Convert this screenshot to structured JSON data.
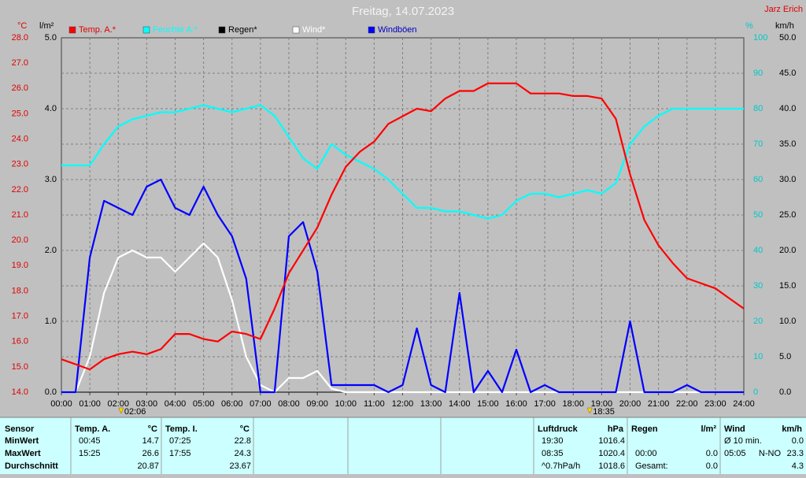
{
  "chart_data": {
    "type": "line",
    "title": "Freitag, 14.07.2023",
    "author": "Jarz Erich",
    "y_unit": "°C",
    "y2_unit": "l/m²",
    "y3_unit": "%",
    "y4_unit": "km/h",
    "grid": true,
    "x": [
      0,
      0.5,
      1,
      1.5,
      2,
      2.5,
      3,
      3.5,
      4,
      4.5,
      5,
      5.5,
      6,
      6.5,
      7,
      7.5,
      8,
      8.5,
      9,
      9.5,
      10,
      10.5,
      11,
      11.5,
      12,
      12.5,
      13,
      13.5,
      14,
      14.5,
      15,
      15.5,
      16,
      16.5,
      17,
      17.5,
      18,
      18.5,
      19,
      19.5,
      20,
      20.5,
      21,
      21.5,
      22,
      22.5,
      23,
      23.5,
      24
    ],
    "xlim": [
      0,
      24
    ],
    "xticks": [
      {
        "value": 0,
        "label": "00:00"
      },
      {
        "value": 1,
        "label": "01:00"
      },
      {
        "value": 2,
        "label": "02:00"
      },
      {
        "value": 3,
        "label": "03:00"
      },
      {
        "value": 4,
        "label": "04:00"
      },
      {
        "value": 5,
        "label": "05:00"
      },
      {
        "value": 6,
        "label": "06:00"
      },
      {
        "value": 7,
        "label": "07:00"
      },
      {
        "value": 8,
        "label": "08:00"
      },
      {
        "value": 9,
        "label": "09:00"
      },
      {
        "value": 10,
        "label": "10:00"
      },
      {
        "value": 11,
        "label": "11:00"
      },
      {
        "value": 12,
        "label": "12:00"
      },
      {
        "value": 13,
        "label": "13:00"
      },
      {
        "value": 14,
        "label": "14:00"
      },
      {
        "value": 15,
        "label": "15:00"
      },
      {
        "value": 16,
        "label": "16:00"
      },
      {
        "value": 17,
        "label": "17:00"
      },
      {
        "value": 18,
        "label": "18:00"
      },
      {
        "value": 19,
        "label": "19:00"
      },
      {
        "value": 20,
        "label": "20:00"
      },
      {
        "value": 21,
        "label": "21:00"
      },
      {
        "value": 22,
        "label": "22:00"
      },
      {
        "value": 23,
        "label": "23:00"
      },
      {
        "value": 24,
        "label": "24:00"
      }
    ],
    "ylim": [
      14,
      28
    ],
    "yticks": [
      {
        "value": 14,
        "label": "14.0"
      },
      {
        "value": 15,
        "label": "15.0"
      },
      {
        "value": 16,
        "label": "16.0"
      },
      {
        "value": 17,
        "label": "17.0"
      },
      {
        "value": 18,
        "label": "18.0"
      },
      {
        "value": 19,
        "label": "19.0"
      },
      {
        "value": 20,
        "label": "20.0"
      },
      {
        "value": 21,
        "label": "21.0"
      },
      {
        "value": 22,
        "label": "22.0"
      },
      {
        "value": 23,
        "label": "23.0"
      },
      {
        "value": 24,
        "label": "24.0"
      },
      {
        "value": 25,
        "label": "25.0"
      },
      {
        "value": 26,
        "label": "26.0"
      },
      {
        "value": 27,
        "label": "27.0"
      },
      {
        "value": 28,
        "label": "28.0"
      }
    ],
    "y2lim": [
      0,
      5
    ],
    "y2ticks": [
      {
        "value": 0,
        "label": "0.0"
      },
      {
        "value": 1,
        "label": "1.0"
      },
      {
        "value": 2,
        "label": "2.0"
      },
      {
        "value": 3,
        "label": "3.0"
      },
      {
        "value": 4,
        "label": "4.0"
      },
      {
        "value": 5,
        "label": "5.0"
      }
    ],
    "y3lim": [
      0,
      100
    ],
    "y3ticks": [
      0,
      10,
      20,
      30,
      40,
      50,
      60,
      70,
      80,
      90,
      100
    ],
    "y4lim": [
      0,
      50
    ],
    "y4ticks": [
      {
        "value": 0,
        "label": "0.0"
      },
      {
        "value": 5,
        "label": "5.0"
      },
      {
        "value": 10,
        "label": "10.0"
      },
      {
        "value": 15,
        "label": "15.0"
      },
      {
        "value": 20,
        "label": "20.0"
      },
      {
        "value": 25,
        "label": "25.0"
      },
      {
        "value": 30,
        "label": "30.0"
      },
      {
        "value": 35,
        "label": "35.0"
      },
      {
        "value": 40,
        "label": "40.0"
      },
      {
        "value": 45,
        "label": "45.0"
      },
      {
        "value": 50,
        "label": "50.0"
      }
    ],
    "series": [
      {
        "name": "Temp. A.*",
        "color": "#ff0000",
        "axis": "y",
        "values": [
          15.3,
          15.1,
          14.9,
          15.3,
          15.5,
          15.6,
          15.5,
          15.7,
          16.3,
          16.3,
          16.1,
          16.0,
          16.4,
          16.3,
          16.1,
          17.3,
          18.7,
          19.6,
          20.5,
          21.8,
          22.9,
          23.5,
          23.9,
          24.6,
          24.9,
          25.2,
          25.1,
          25.6,
          25.9,
          25.9,
          26.2,
          26.2,
          26.2,
          25.8,
          25.8,
          25.8,
          25.7,
          25.7,
          25.6,
          24.8,
          22.6,
          20.8,
          19.8,
          19.1,
          18.5,
          18.3,
          18.1,
          17.7,
          17.3
        ]
      },
      {
        "name": "Feuchte A.*",
        "color": "#00ffff",
        "axis": "y3",
        "values": [
          64,
          64,
          64,
          70,
          75,
          77,
          78,
          79,
          79,
          80,
          81,
          80,
          79,
          80,
          81,
          78,
          72,
          66,
          63,
          70,
          67,
          65,
          63,
          60,
          56,
          52,
          52,
          51,
          51,
          50,
          49,
          50,
          54,
          56,
          56,
          55,
          56,
          57,
          56,
          59,
          70,
          75,
          78,
          80,
          80,
          80,
          80,
          80,
          80
        ]
      },
      {
        "name": "Regen*",
        "color": "#000000",
        "axis": "y2",
        "values": [
          0,
          0,
          0,
          0,
          0,
          0,
          0,
          0,
          0,
          0,
          0,
          0,
          0,
          0,
          0,
          0,
          0,
          0,
          0,
          0,
          0,
          0,
          0,
          0,
          0,
          0,
          0,
          0,
          0,
          0,
          0,
          0,
          0,
          0,
          0,
          0,
          0,
          0,
          0,
          0,
          0,
          0,
          0,
          0,
          0,
          0,
          0,
          0,
          0
        ]
      },
      {
        "name": "Wind*",
        "color": "#ffffff",
        "axis": "y4",
        "values": [
          0,
          0,
          5,
          14,
          19,
          20,
          19,
          19,
          17,
          19,
          21,
          19,
          13,
          5,
          1,
          0,
          2,
          2,
          3,
          0.5,
          0,
          0,
          0,
          0,
          0,
          0,
          0,
          0,
          0,
          0,
          0,
          0,
          0,
          0,
          0,
          0,
          0,
          0,
          0,
          0,
          0,
          0,
          0,
          0,
          0,
          0,
          0,
          0,
          0
        ]
      },
      {
        "name": "Windböen",
        "color": "#0000ff",
        "axis": "y4",
        "values": [
          0,
          0,
          19,
          27,
          26,
          25,
          29,
          30,
          26,
          25,
          29,
          25,
          22,
          16,
          0,
          0,
          22,
          24,
          17,
          1,
          1,
          1,
          1,
          0,
          1,
          9,
          1,
          0,
          14,
          0,
          3,
          0,
          6,
          0,
          1,
          0,
          0,
          0,
          0,
          0,
          10,
          0,
          0,
          0,
          1,
          0,
          0,
          0,
          0
        ]
      }
    ],
    "sun_marks": [
      {
        "x": 2.1,
        "label": "02:06"
      },
      {
        "x": 18.583,
        "label": "18:35"
      }
    ]
  },
  "stats": {
    "row_labels": [
      "Sensor",
      "MinWert",
      "MaxWert",
      "Durchschnitt"
    ],
    "groups": [
      {
        "header": [
          "Temp. A.",
          "°C"
        ],
        "rows": [
          [
            "00:45",
            "14.7"
          ],
          [
            "15:25",
            "26.6"
          ],
          [
            null,
            "20.87"
          ]
        ]
      },
      {
        "header": [
          "Temp. I.",
          "°C"
        ],
        "rows": [
          [
            "07:25",
            "22.8"
          ],
          [
            "17:55",
            "24.3"
          ],
          [
            null,
            "23.67"
          ]
        ]
      },
      {
        "header": [
          "Luftdruck",
          "hPa"
        ],
        "rows": [
          [
            "19:30",
            "1016.4"
          ],
          [
            "08:35",
            "1020.4"
          ],
          [
            "^0.7hPa/h",
            "1018.6"
          ]
        ]
      },
      {
        "header": [
          "Regen",
          "l/m²"
        ],
        "rows": [
          [
            null,
            null
          ],
          [
            "00:00",
            "0.0"
          ],
          [
            "Gesamt:",
            "0.0"
          ]
        ]
      },
      {
        "header": [
          "Wind",
          "km/h"
        ],
        "rows": [
          [
            "Ø 10 min.",
            null,
            "0.0"
          ],
          [
            "05:05",
            "N-NO",
            "23.3"
          ],
          [
            null,
            null,
            "4.3"
          ]
        ]
      }
    ]
  }
}
